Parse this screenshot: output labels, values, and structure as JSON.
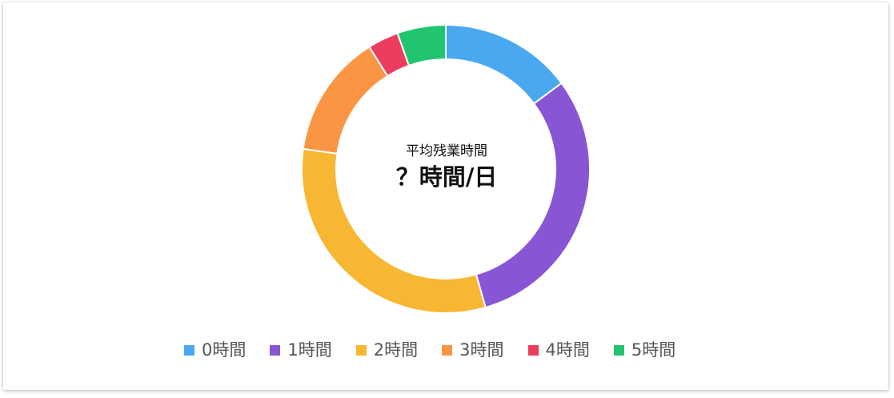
{
  "chart_data": {
    "type": "pie",
    "center": {
      "subtitle": "平均残業時間",
      "title": "？時間/日"
    },
    "categories": [
      "0時間",
      "1時間",
      "2時間",
      "3時間",
      "4時間",
      "5時間"
    ],
    "values": [
      15,
      31,
      32,
      14,
      3.5,
      5.5
    ],
    "colors": [
      "#4AA8F0",
      "#8855D4",
      "#F7B733",
      "#FA9544",
      "#EC3D5E",
      "#21C46F"
    ],
    "legend_position": "bottom"
  }
}
